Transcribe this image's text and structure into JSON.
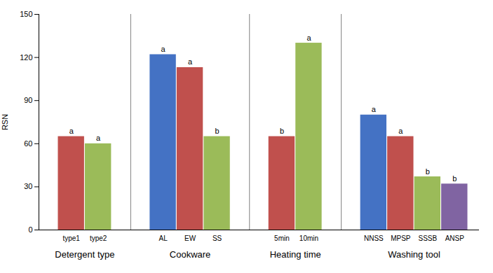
{
  "chart_data": {
    "type": "bar",
    "ylabel": "RSN",
    "ylim": [
      0,
      150
    ],
    "yticks": [
      0,
      30,
      60,
      90,
      120,
      150
    ],
    "grid": false,
    "groups": [
      {
        "label": "Detergent type",
        "categories": [
          "type1",
          "type2"
        ],
        "values": [
          65,
          60
        ],
        "colors": [
          "#C0504D",
          "#9BBB59"
        ],
        "annotations": [
          "a",
          "a"
        ]
      },
      {
        "label": "Cookware",
        "categories": [
          "AL",
          "EW",
          "SS"
        ],
        "values": [
          122,
          113,
          65
        ],
        "colors": [
          "#4472C4",
          "#C0504D",
          "#9BBB59"
        ],
        "annotations": [
          "a",
          "a",
          "b"
        ]
      },
      {
        "label": "Heating time",
        "categories": [
          "5min",
          "10min"
        ],
        "values": [
          65,
          130
        ],
        "colors": [
          "#C0504D",
          "#9BBB59"
        ],
        "annotations": [
          "b",
          "a"
        ]
      },
      {
        "label": "Washing tool",
        "categories": [
          "NNSS",
          "MPSP",
          "SSSB",
          "ANSP"
        ],
        "values": [
          80,
          65,
          37,
          32
        ],
        "colors": [
          "#4472C4",
          "#C0504D",
          "#9BBB59",
          "#8064A2"
        ],
        "annotations": [
          "a",
          "a",
          "b",
          "b"
        ]
      }
    ]
  }
}
